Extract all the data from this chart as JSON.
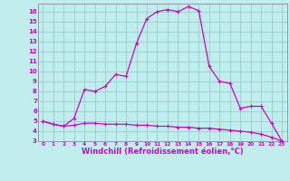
{
  "xlabel": "Windchill (Refroidissement éolien,°C)",
  "bg_color": "#c0eeed",
  "grid_color": "#99cccc",
  "line_color": "#cc00cc",
  "spine_color": "#8888aa",
  "x": [
    0,
    1,
    2,
    3,
    4,
    5,
    6,
    7,
    8,
    9,
    10,
    11,
    12,
    13,
    14,
    15,
    16,
    17,
    18,
    19,
    20,
    21,
    22,
    23
  ],
  "line1_y": [
    5.0,
    4.7,
    4.5,
    4.6,
    4.8,
    4.8,
    4.7,
    4.7,
    4.7,
    4.6,
    4.6,
    4.5,
    4.5,
    4.4,
    4.4,
    4.3,
    4.3,
    4.2,
    4.1,
    4.0,
    3.9,
    3.7,
    3.4,
    3.0
  ],
  "line2_y": [
    5.0,
    4.7,
    4.5,
    5.3,
    8.2,
    8.0,
    8.5,
    9.7,
    9.5,
    12.8,
    15.3,
    16.0,
    16.2,
    16.0,
    16.5,
    16.1,
    10.5,
    9.0,
    8.8,
    6.3,
    6.5,
    6.5,
    4.8,
    3.0
  ],
  "ylim": [
    3,
    16.8
  ],
  "xlim": [
    -0.5,
    23.5
  ],
  "yticks": [
    3,
    4,
    5,
    6,
    7,
    8,
    9,
    10,
    11,
    12,
    13,
    14,
    15,
    16
  ],
  "xticks": [
    0,
    1,
    2,
    3,
    4,
    5,
    6,
    7,
    8,
    9,
    10,
    11,
    12,
    13,
    14,
    15,
    16,
    17,
    18,
    19,
    20,
    21,
    22,
    23
  ],
  "tick_fontsize": 5.0,
  "xlabel_fontsize": 6.0,
  "marker_size": 3.0,
  "line_width": 0.9
}
